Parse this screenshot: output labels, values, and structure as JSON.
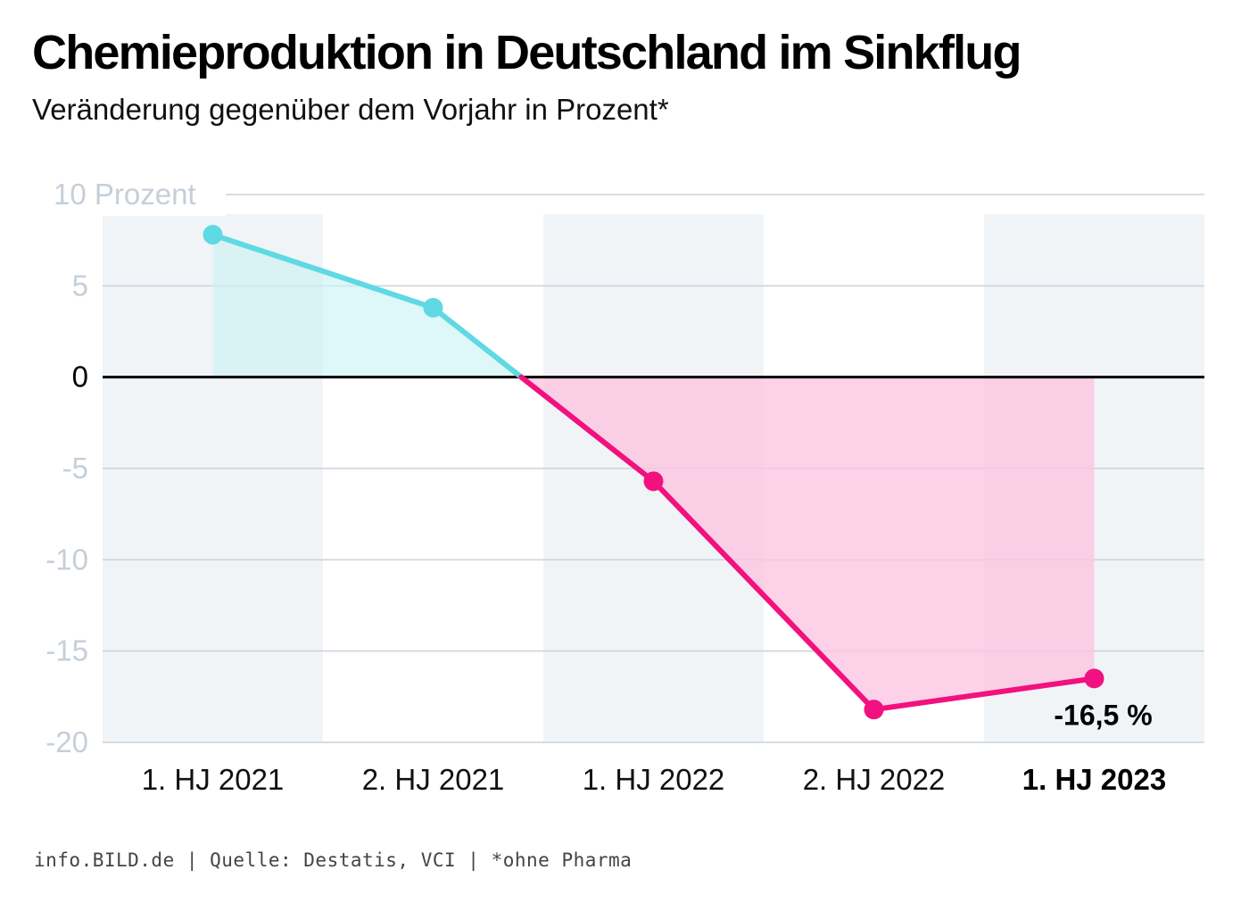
{
  "header": {
    "title": "Chemieproduktion in Deutschland im Sinkflug",
    "subtitle": "Veränderung gegenüber dem Vorjahr in Prozent*"
  },
  "footer": {
    "text": "info.BILD.de | Quelle: Destatis, VCI | *ohne Pharma"
  },
  "colors": {
    "positive_line": "#5fd9e3",
    "positive_fill": "#ccf2f5",
    "negative_line": "#f1117f",
    "negative_fill": "#fdc5e1",
    "band": "#f1f4f7",
    "grid": "#c8d2dc",
    "zero_line": "#000000"
  },
  "chart_data": {
    "type": "line",
    "categories": [
      "1. HJ 2021",
      "2. HJ 2021",
      "1. HJ 2022",
      "2. HJ 2022",
      "1. HJ 2023"
    ],
    "highlight_category": "1. HJ 2023",
    "values": [
      7.8,
      3.8,
      -5.7,
      -18.2,
      -16.5
    ],
    "ylim": [
      -20,
      10
    ],
    "yticks": [
      10,
      5,
      0,
      -5,
      -10,
      -15,
      -20
    ],
    "ytick_labels": [
      "10 Prozent",
      "5",
      "0",
      "-5",
      "-10",
      "-15",
      "-20"
    ],
    "ylabel": "",
    "xlabel": "",
    "grid": true,
    "data_labels": [
      {
        "category": "1. HJ 2023",
        "text": "-16,5 %"
      }
    ]
  }
}
